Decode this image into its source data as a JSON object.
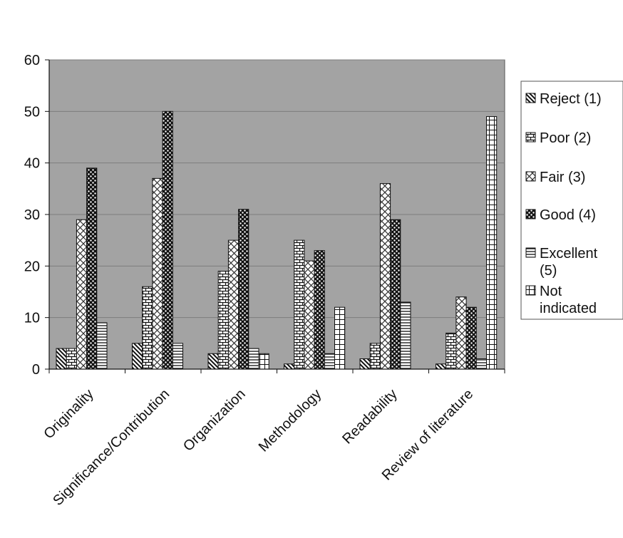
{
  "chart_data": {
    "type": "bar",
    "categories": [
      "Originality",
      "Significance/Contribution",
      "Organization",
      "Methodology",
      "Readability",
      "Review of literature"
    ],
    "series": [
      {
        "name": "Reject (1)",
        "values": [
          4,
          5,
          3,
          1,
          2,
          1
        ],
        "pattern": "diag"
      },
      {
        "name": "Poor (2)",
        "values": [
          4,
          16,
          19,
          25,
          5,
          7
        ],
        "pattern": "brick"
      },
      {
        "name": "Fair (3)",
        "values": [
          29,
          37,
          25,
          21,
          36,
          14
        ],
        "pattern": "cross"
      },
      {
        "name": "Good (4)",
        "values": [
          39,
          50,
          31,
          23,
          29,
          12
        ],
        "pattern": "dots"
      },
      {
        "name": "Excellent (5)",
        "values": [
          9,
          5,
          4,
          3,
          13,
          2
        ],
        "pattern": "hlines"
      },
      {
        "name": "Not indicated",
        "values": [
          0,
          0,
          3,
          12,
          0,
          49
        ],
        "pattern": "grid"
      }
    ],
    "yticks": [
      0,
      10,
      20,
      30,
      40,
      50,
      60
    ],
    "ylim": [
      0,
      60
    ],
    "grid": true,
    "legend": "right",
    "title": "",
    "xlabel": "",
    "ylabel": ""
  },
  "colors": {
    "plot_background": "#a3a3a3",
    "gridline": "#7d7d7d",
    "bar_fill": "#ffffff",
    "bar_ink": "#111111"
  }
}
